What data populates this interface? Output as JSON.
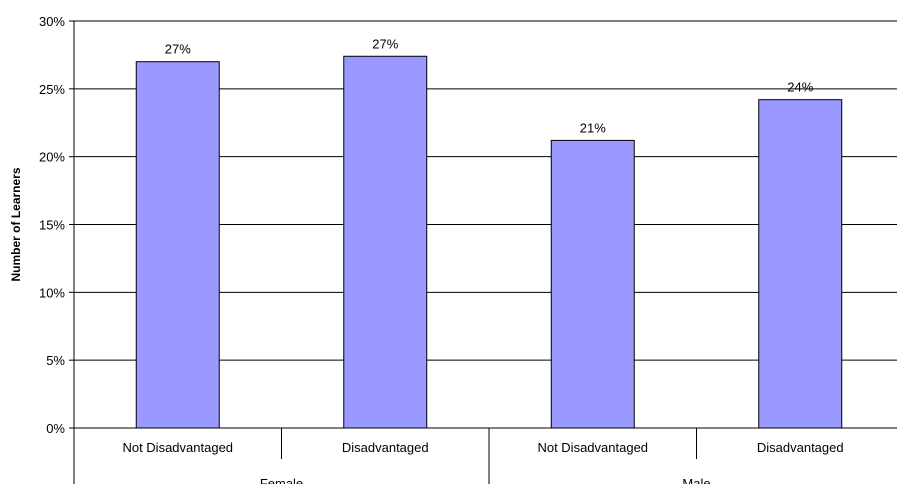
{
  "chart_data": {
    "type": "bar",
    "title": "",
    "xlabel": "",
    "ylabel": "Number of Learners",
    "ylim": [
      0,
      0.3
    ],
    "yticks": [
      "0%",
      "5%",
      "10%",
      "15%",
      "20%",
      "25%",
      "30%"
    ],
    "yticks_values": [
      0,
      0.05,
      0.1,
      0.15,
      0.2,
      0.25,
      0.3
    ],
    "grid": true,
    "legend": "none",
    "bar_color": "#9999ff",
    "groups": [
      {
        "label": "Female",
        "categories": [
          "Not Disadvantaged",
          "Disadvantaged"
        ]
      },
      {
        "label": "Male",
        "categories": [
          "Not Disadvantaged",
          "Disadvantaged"
        ]
      }
    ],
    "categories": [
      "Not Disadvantaged",
      "Disadvantaged",
      "Not Disadvantaged",
      "Disadvantaged"
    ],
    "values": [
      0.27,
      0.274,
      0.212,
      0.242
    ],
    "data_labels": [
      "27%",
      "27%",
      "21%",
      "24%"
    ]
  }
}
